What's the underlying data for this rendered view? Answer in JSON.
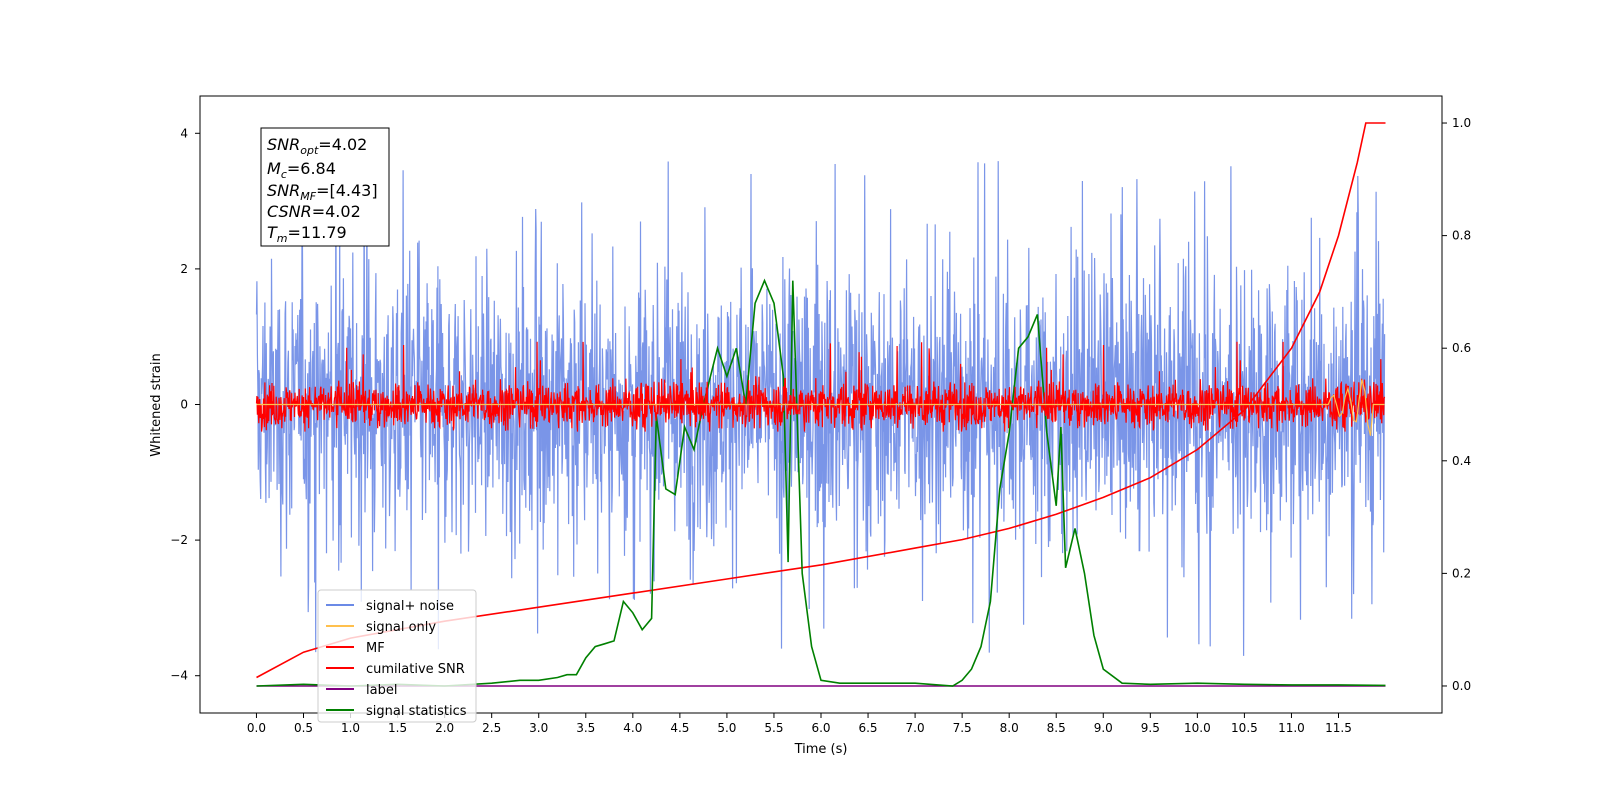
{
  "chart_data": {
    "type": "line",
    "xlabel": "Time (s)",
    "ylabel": "Whitened strain",
    "xlim": [
      -0.6,
      12.6
    ],
    "ylim": [
      -4.55,
      4.55
    ],
    "y2lim": [
      -0.048,
      1.048
    ],
    "x_ticks": [
      "0.0",
      "0.5",
      "1.0",
      "1.5",
      "2.0",
      "2.5",
      "3.0",
      "3.5",
      "4.0",
      "4.5",
      "5.0",
      "5.5",
      "6.0",
      "6.5",
      "7.0",
      "7.5",
      "8.0",
      "8.5",
      "9.0",
      "9.5",
      "10.0",
      "10.5",
      "11.0",
      "11.5"
    ],
    "y_ticks": [
      "4",
      "2",
      "0",
      "−2",
      "−4"
    ],
    "y2_ticks": [
      "1.0",
      "0.8",
      "0.6",
      "0.4",
      "0.2",
      "0.0"
    ],
    "legend_placement": "lower-left",
    "legend": [
      "signal+ noise",
      "signal only",
      "MF",
      "cumilative SNR",
      "label",
      "signal statistics"
    ],
    "annotation": {
      "snr_opt": {
        "symbol": "SNR",
        "sub": "opt",
        "value": "=4.02"
      },
      "mc": {
        "symbol": "M",
        "sub": "c",
        "value": "=6.84"
      },
      "snr_mf": {
        "symbol": "SNR",
        "sub": "MF",
        "value": "=[4.43]"
      },
      "csnr": {
        "symbol": "CSNR",
        "value": "=4.02"
      },
      "tm": {
        "symbol": "T",
        "sub": "m",
        "value": "=11.79"
      }
    },
    "colors": {
      "signal_noise": "#6b8ae6",
      "signal_only": "#ffc04d",
      "mf": "#ff0000",
      "cumulative_snr": "#ff0000",
      "label": "#800080",
      "signal_statistics": "#008000"
    },
    "series": [
      {
        "name": "cumilative SNR",
        "axis": "right",
        "x": [
          0.0,
          0.5,
          1.0,
          2.0,
          3.0,
          4.0,
          5.0,
          6.0,
          7.0,
          7.5,
          8.0,
          8.5,
          9.0,
          9.5,
          10.0,
          10.5,
          11.0,
          11.3,
          11.5,
          11.7,
          11.79,
          12.0
        ],
        "y": [
          0.015,
          0.06,
          0.085,
          0.115,
          0.14,
          0.165,
          0.19,
          0.215,
          0.245,
          0.26,
          0.28,
          0.305,
          0.335,
          0.37,
          0.42,
          0.49,
          0.6,
          0.7,
          0.8,
          0.93,
          1.0,
          1.0
        ]
      },
      {
        "name": "label",
        "axis": "right",
        "x": [
          0.0,
          12.0
        ],
        "y": [
          0.0,
          0.0
        ]
      },
      {
        "name": "signal statistics",
        "axis": "right",
        "x": [
          0.0,
          0.5,
          1.0,
          1.5,
          2.0,
          2.5,
          2.8,
          3.0,
          3.2,
          3.3,
          3.4,
          3.5,
          3.6,
          3.7,
          3.8,
          3.9,
          4.0,
          4.1,
          4.2,
          4.25,
          4.35,
          4.45,
          4.55,
          4.65,
          4.75,
          4.9,
          5.0,
          5.1,
          5.2,
          5.3,
          5.4,
          5.5,
          5.6,
          5.65,
          5.7,
          5.8,
          5.9,
          6.0,
          6.2,
          6.5,
          7.0,
          7.4,
          7.5,
          7.6,
          7.7,
          7.8,
          7.9,
          8.0,
          8.1,
          8.2,
          8.3,
          8.4,
          8.5,
          8.55,
          8.6,
          8.7,
          8.8,
          8.9,
          9.0,
          9.2,
          9.5,
          10.0,
          10.5,
          11.0,
          11.5,
          12.0
        ],
        "y": [
          0.0,
          0.003,
          0.0,
          0.003,
          0.0,
          0.005,
          0.01,
          0.01,
          0.015,
          0.02,
          0.02,
          0.05,
          0.07,
          0.075,
          0.08,
          0.15,
          0.13,
          0.1,
          0.12,
          0.48,
          0.35,
          0.34,
          0.46,
          0.42,
          0.5,
          0.6,
          0.55,
          0.6,
          0.5,
          0.68,
          0.72,
          0.68,
          0.55,
          0.22,
          0.72,
          0.2,
          0.07,
          0.01,
          0.005,
          0.005,
          0.005,
          0.0,
          0.01,
          0.03,
          0.07,
          0.15,
          0.35,
          0.45,
          0.6,
          0.62,
          0.66,
          0.45,
          0.32,
          0.46,
          0.21,
          0.28,
          0.2,
          0.09,
          0.03,
          0.005,
          0.003,
          0.005,
          0.003,
          0.002,
          0.002,
          0.001
        ]
      },
      {
        "name": "signal+ noise",
        "axis": "left",
        "description": "whitened noise, roughly ±2 sigma with spikes to ±4"
      },
      {
        "name": "MF",
        "axis": "left",
        "description": "matched-filter output, roughly ±0.4 with spikes to ±1"
      },
      {
        "name": "signal only",
        "axis": "left",
        "description": "near zero, small excursion near 11.8 s"
      }
    ]
  }
}
